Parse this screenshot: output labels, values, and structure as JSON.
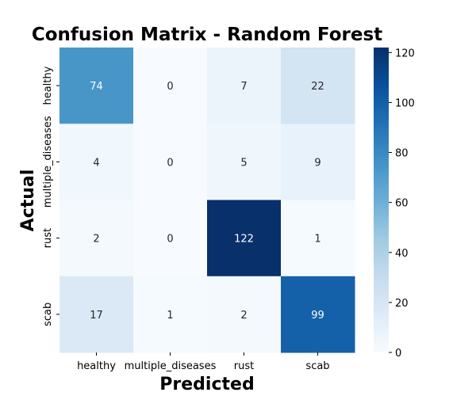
{
  "chart_data": {
    "type": "heatmap",
    "title": "Confusion Matrix - Random Forest",
    "xlabel": "Predicted",
    "ylabel": "Actual",
    "x_categories": [
      "healthy",
      "multiple_diseases",
      "rust",
      "scab"
    ],
    "y_categories": [
      "healthy",
      "multiple_diseases",
      "rust",
      "scab"
    ],
    "values": [
      [
        74,
        0,
        7,
        22
      ],
      [
        4,
        0,
        5,
        9
      ],
      [
        2,
        0,
        122,
        1
      ],
      [
        17,
        1,
        2,
        99
      ]
    ],
    "colorbar": {
      "min": 0,
      "max": 122,
      "ticks": [
        0,
        20,
        40,
        60,
        80,
        100,
        120
      ],
      "colormap": "Blues"
    }
  }
}
